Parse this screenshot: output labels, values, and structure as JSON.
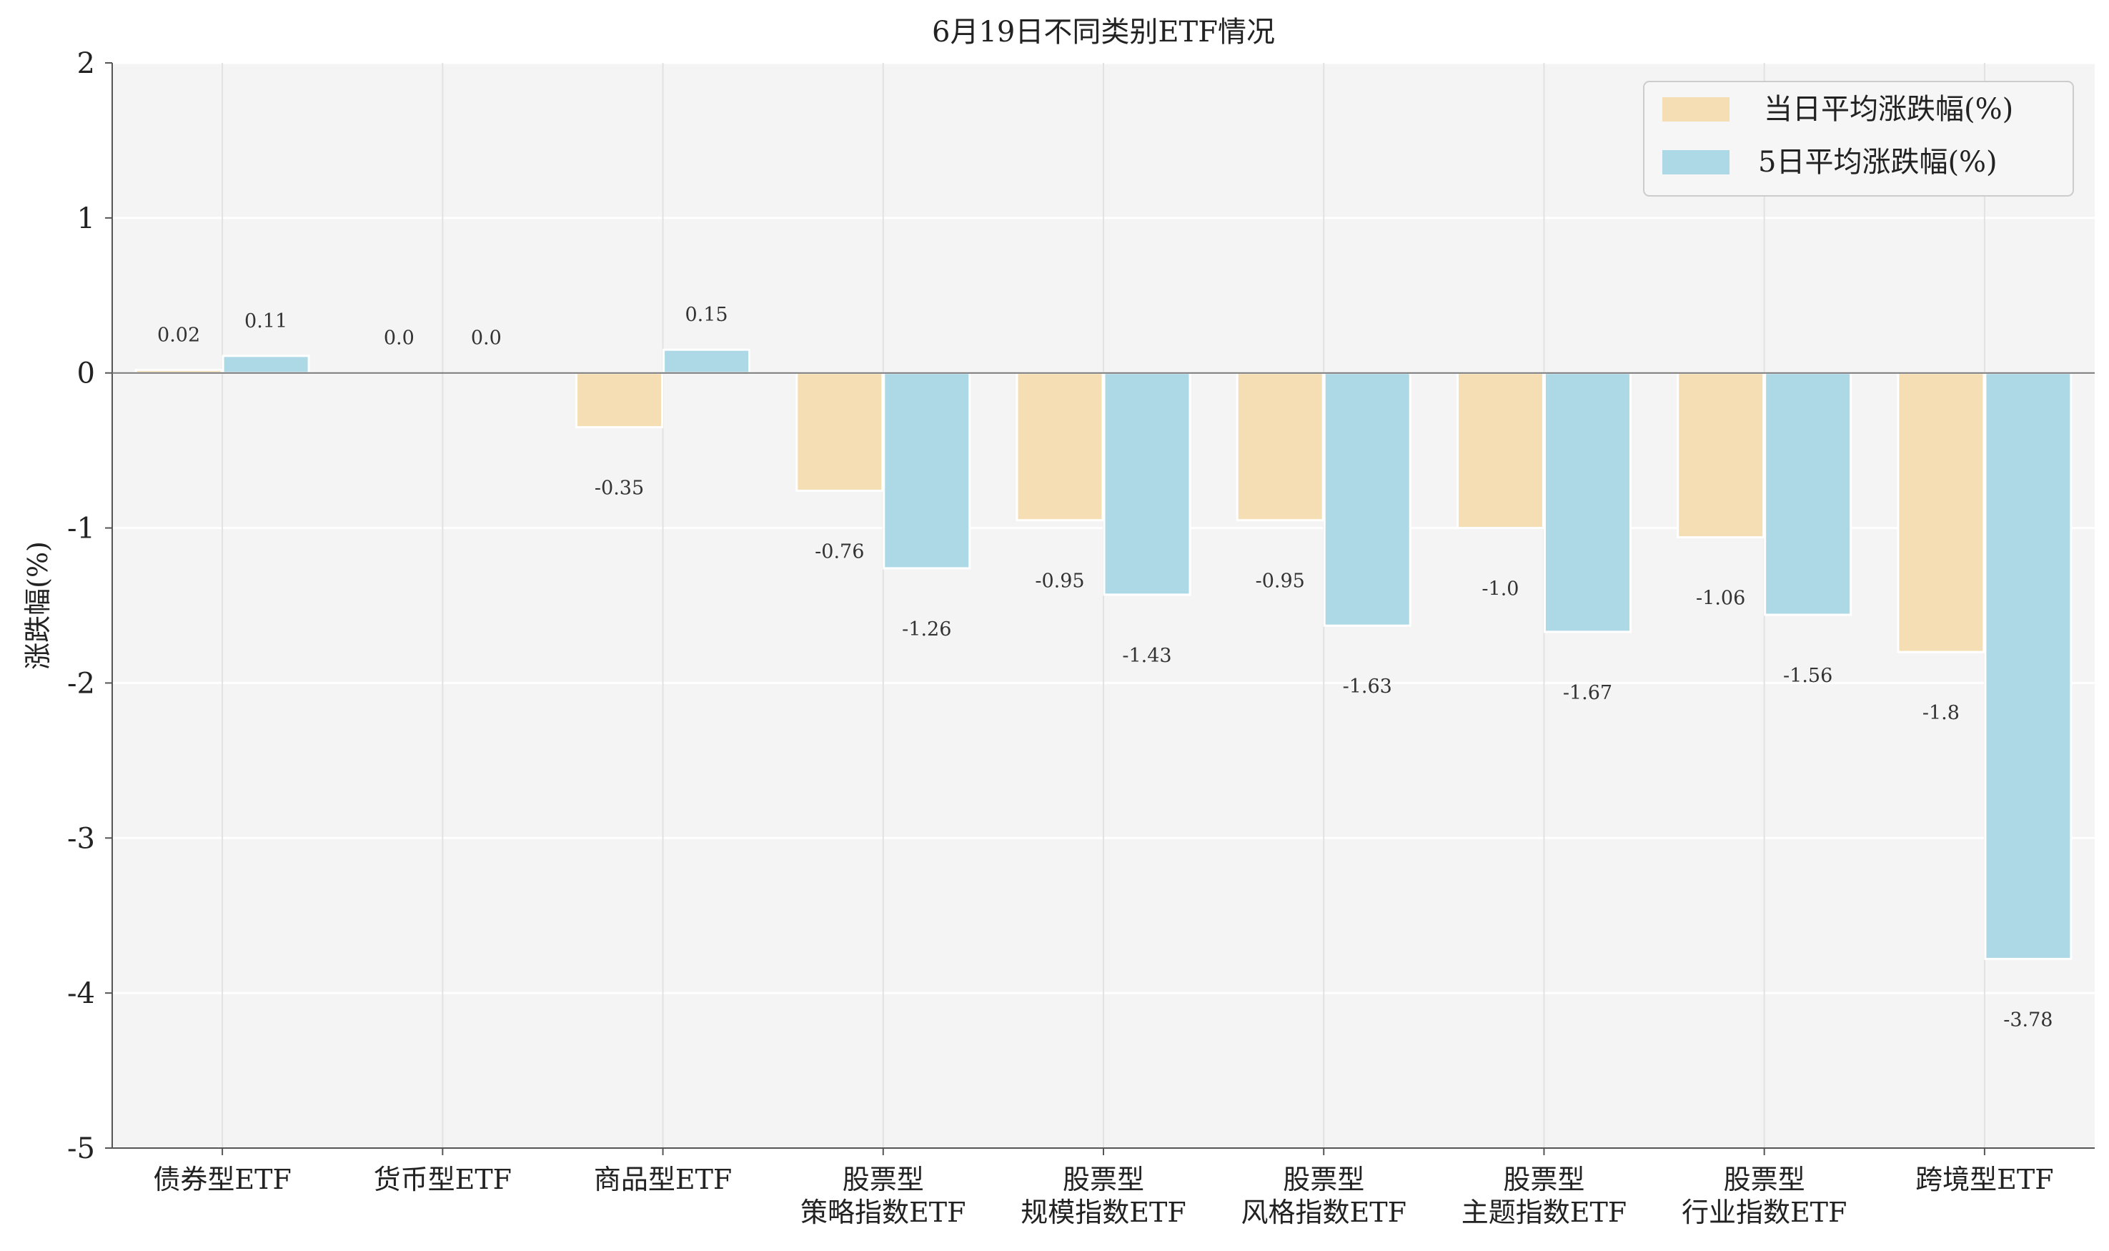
{
  "chart_data": {
    "type": "bar",
    "title": "6月19日不同类别ETF情况",
    "ylabel": "涨跌幅(%)",
    "xlabel": "",
    "ylim": [
      -5,
      2
    ],
    "yticks": [
      2,
      1,
      0,
      -1,
      -2,
      -3,
      -4,
      -5
    ],
    "grid": true,
    "legend_position": "top-right",
    "categories": [
      [
        "债券型ETF"
      ],
      [
        "货币型ETF"
      ],
      [
        "商品型ETF"
      ],
      [
        "股票型",
        "策略指数ETF"
      ],
      [
        "股票型",
        "规模指数ETF"
      ],
      [
        "股票型",
        "风格指数ETF"
      ],
      [
        "股票型",
        "主题指数ETF"
      ],
      [
        "股票型",
        "行业指数ETF"
      ],
      [
        "跨境型ETF"
      ]
    ],
    "series": [
      {
        "name": "当日平均涨跌幅(%)",
        "color": "#f5deb3",
        "values": [
          0.02,
          0.0,
          -0.35,
          -0.76,
          -0.95,
          -0.95,
          -1.0,
          -1.06,
          -1.8
        ],
        "labels": [
          "0.02",
          "0.0",
          "-0.35",
          "-0.76",
          "-0.95",
          "-0.95",
          "-1.0",
          "-1.06",
          "-1.8"
        ]
      },
      {
        "name": "5日平均涨跌幅(%)",
        "color": "#add8e6",
        "values": [
          0.11,
          0.0,
          0.15,
          -1.26,
          -1.43,
          -1.63,
          -1.67,
          -1.56,
          -3.78
        ],
        "labels": [
          "0.11",
          "0.0",
          "0.15",
          "-1.26",
          "-1.43",
          "-1.63",
          "-1.67",
          "-1.56",
          "-3.78"
        ]
      }
    ]
  }
}
